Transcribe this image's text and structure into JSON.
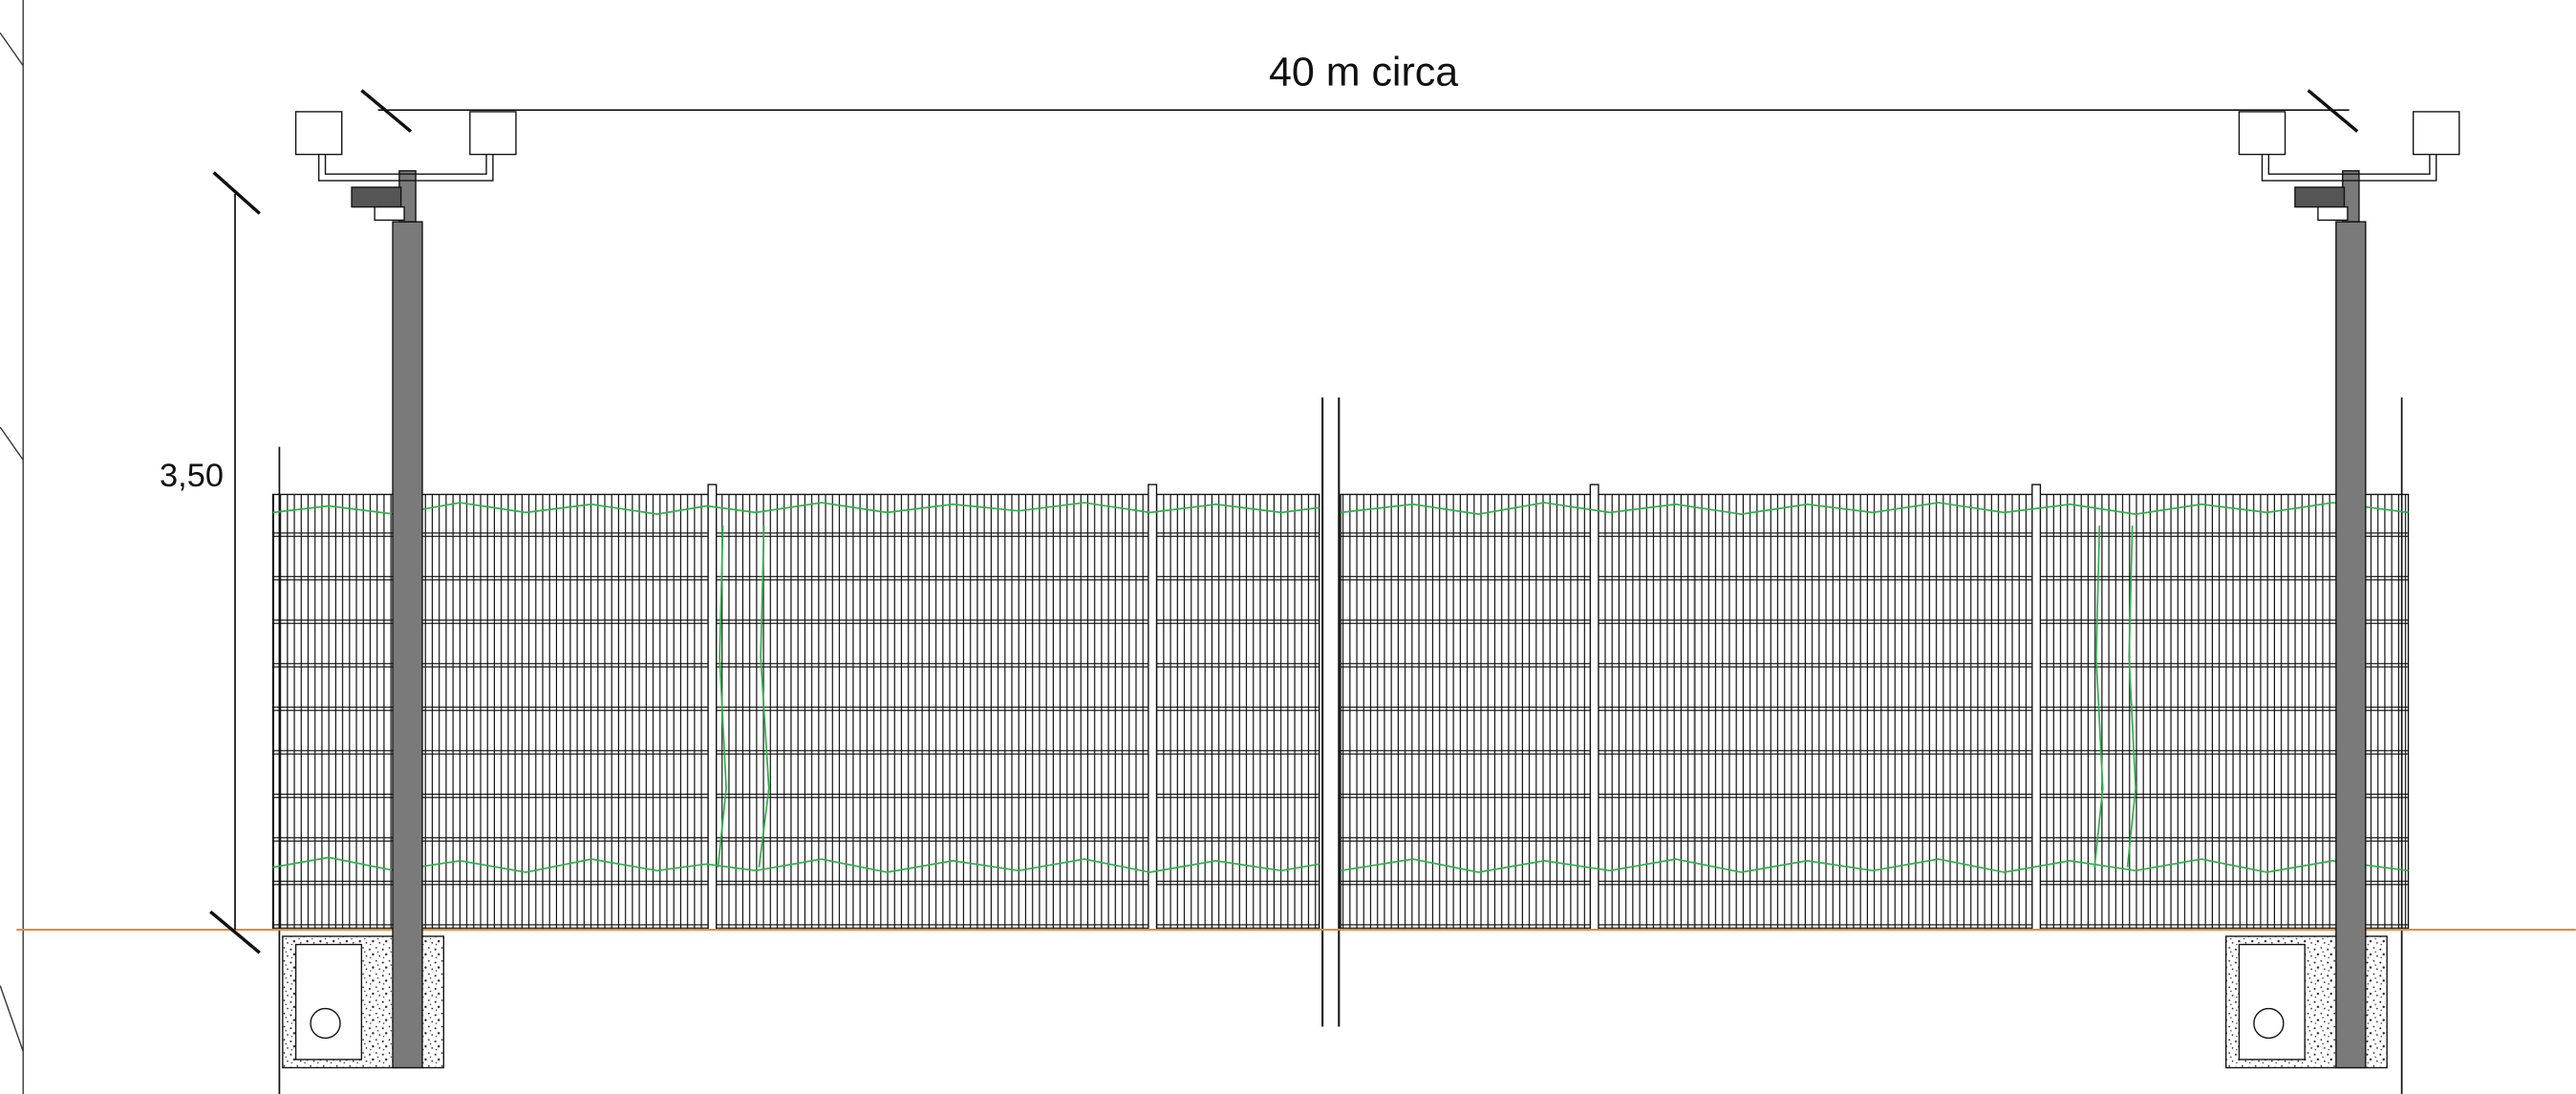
{
  "dimensions": {
    "width_label": "40 m circa",
    "height_label": "3,50"
  }
}
